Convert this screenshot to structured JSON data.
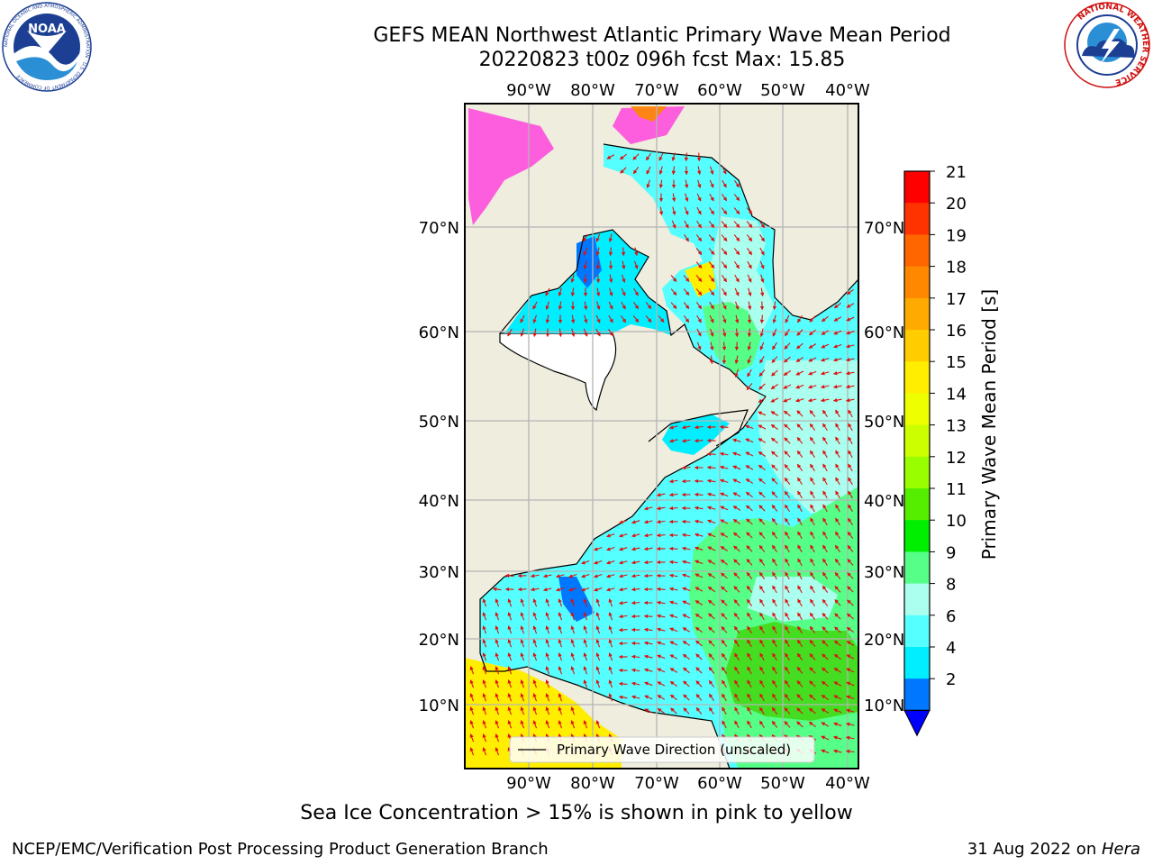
{
  "header": {
    "title": "GEFS MEAN Northwest Atlantic Primary Wave Mean Period",
    "subtitle": "20220823 t00z 096h fcst   Max: 15.85"
  },
  "logos": {
    "noaa_text": "NOAA",
    "noaa_ring": "NATIONAL OCEANIC AND ATMOSPHERIC ADMINISTRATION · U.S. DEPARTMENT OF COMMERCE",
    "nws_ring": "NATIONAL WEATHER SERVICE"
  },
  "map": {
    "lon_labels": [
      "90°W",
      "80°W",
      "70°W",
      "60°W",
      "50°W",
      "40°W"
    ],
    "lat_labels": [
      "70°N",
      "60°N",
      "50°N",
      "40°N",
      "30°N",
      "20°N",
      "10°N"
    ],
    "legend_label": "Primary Wave Direction (unscaled)",
    "colors": {
      "land": "#efedde",
      "grid": "#b4b4b4",
      "arrows": "#e01010",
      "sea_ice": "#ff44dd"
    }
  },
  "colorbar": {
    "label": "Primary Wave Mean Period [s]",
    "ticks": [
      "21",
      "20",
      "19",
      "18",
      "17",
      "16",
      "15",
      "14",
      "13",
      "12",
      "11",
      "10",
      "9",
      "8",
      "6",
      "4",
      "2"
    ],
    "colors": [
      "#ff0000",
      "#ff3300",
      "#ff6600",
      "#ff8800",
      "#ffaa00",
      "#ffcc00",
      "#ffee00",
      "#eeff00",
      "#ccff00",
      "#99ff00",
      "#55ee00",
      "#00ee00",
      "#55ff88",
      "#aaffee",
      "#55ffff",
      "#00eeff",
      "#0077ff"
    ],
    "extend_color": "#0000ff"
  },
  "footer": {
    "note": "Sea Ice Concentration > 15% is shown in pink to yellow",
    "left": "NCEP/EMC/Verification Post Processing Product Generation Branch",
    "right_date": "31 Aug 2022 on ",
    "right_host": "Hera"
  }
}
